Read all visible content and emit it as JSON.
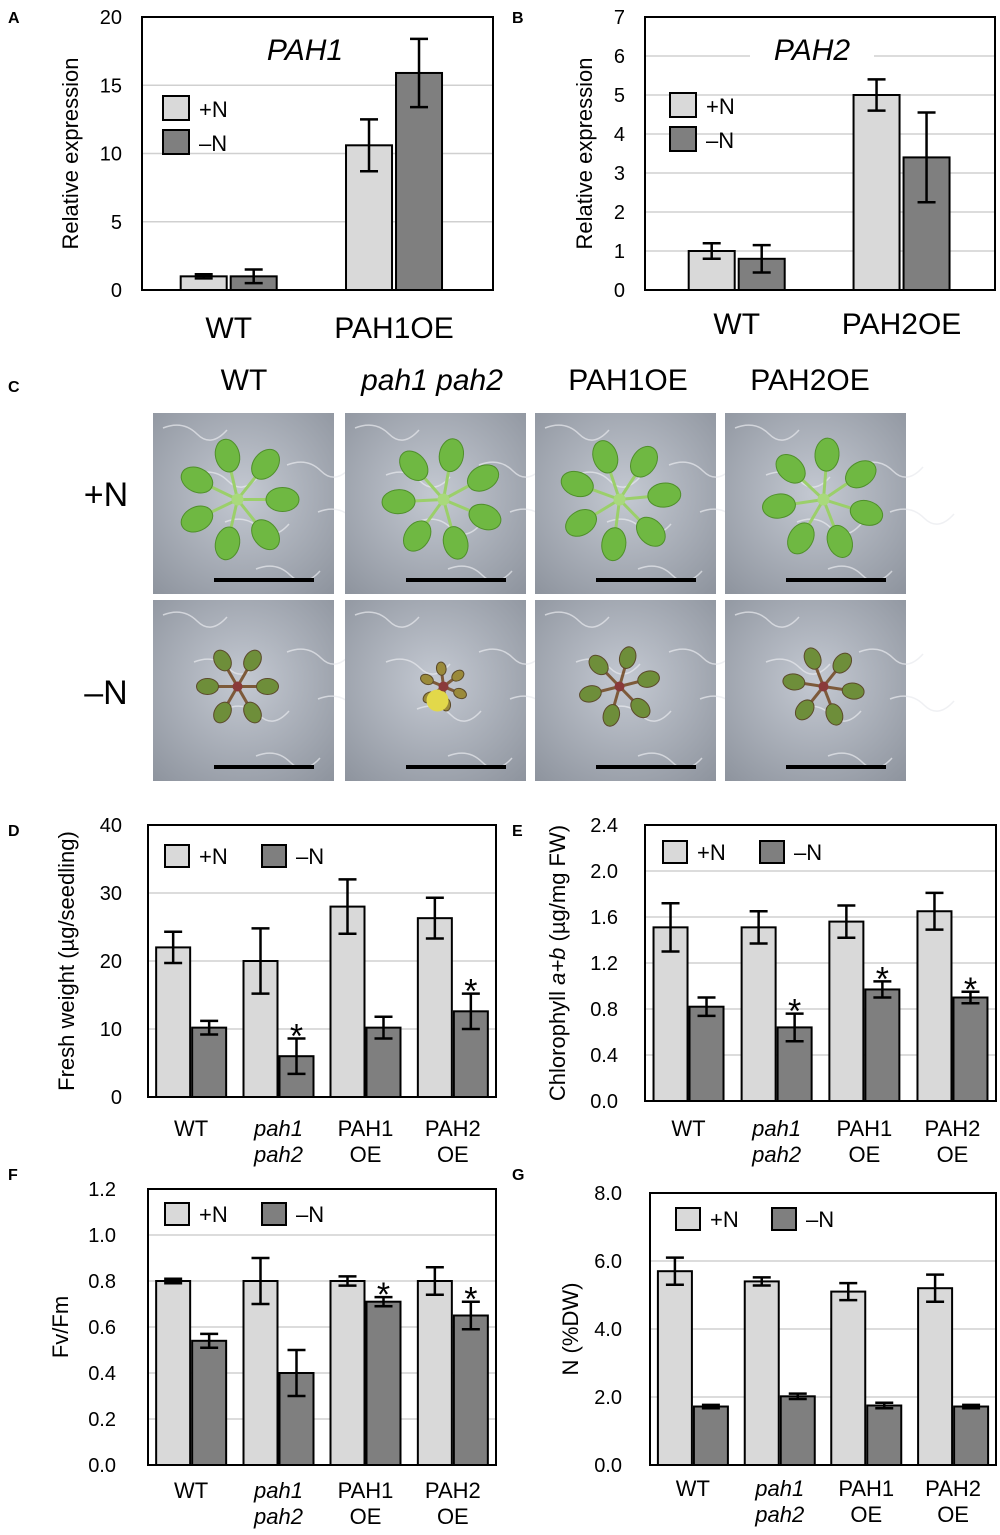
{
  "colors": {
    "plus_n": "#d9d9d9",
    "minus_n": "#7f7f7f",
    "gridline": "#d0d0d0",
    "frame": "#000000",
    "plant_green": "#6fb842",
    "medium_grey": "#9ea4ac",
    "scale_bar": "#000000"
  },
  "legend": {
    "plus_n": "+N",
    "minus_n": "–N"
  },
  "panel_c": {
    "label": "C",
    "genotypes": [
      "WT",
      "pah1 pah2",
      "PAH1OE",
      "PAH2OE"
    ],
    "genotype_italic": [
      false,
      true,
      false,
      false
    ],
    "conditions": [
      "+N",
      "–N"
    ],
    "photo_content": "Arabidopsis seedlings grown on agar with (+N) or without (–N) nitrogen; each photo has a black scale bar"
  },
  "chart_data": [
    {
      "label": "A",
      "type": "bar",
      "title": "PAH1",
      "ylabel": "Relative expression",
      "ylim": [
        0,
        20
      ],
      "yticks": [
        "0",
        "5",
        "10",
        "15",
        "20"
      ],
      "categories": [
        "WT",
        "PAH1OE"
      ],
      "category_lines": [
        [
          "WT"
        ],
        [
          "PAH1OE"
        ]
      ],
      "series": [
        {
          "name": "+N",
          "values": [
            1.0,
            10.6
          ],
          "errors": [
            0.15,
            1.9
          ]
        },
        {
          "name": "–N",
          "values": [
            1.0,
            15.9
          ],
          "errors": [
            0.5,
            2.5
          ]
        }
      ],
      "stars": [
        [
          false,
          false
        ],
        [
          false,
          false
        ]
      ],
      "grid": true,
      "legend": "top-left"
    },
    {
      "label": "B",
      "type": "bar",
      "title": "PAH2",
      "ylabel": "Relative expression",
      "ylim": [
        0,
        7
      ],
      "yticks": [
        "0",
        "1",
        "2",
        "3",
        "4",
        "5",
        "6",
        "7"
      ],
      "categories": [
        "WT",
        "PAH2OE"
      ],
      "category_lines": [
        [
          "WT"
        ],
        [
          "PAH2OE"
        ]
      ],
      "series": [
        {
          "name": "+N",
          "values": [
            1.0,
            5.0
          ],
          "errors": [
            0.2,
            0.4
          ]
        },
        {
          "name": "–N",
          "values": [
            0.8,
            3.4
          ],
          "errors": [
            0.35,
            1.15
          ]
        }
      ],
      "stars": [
        [
          false,
          false
        ],
        [
          false,
          false
        ]
      ],
      "grid": true,
      "legend": "top-left"
    },
    {
      "label": "D",
      "type": "bar",
      "ylabel": "Fresh weight (µg/seedling)",
      "ylim": [
        0,
        40
      ],
      "yticks": [
        "0",
        "10",
        "20",
        "30",
        "40"
      ],
      "categories": [
        "WT",
        "pah1 pah2",
        "PAH1 OE",
        "PAH2 OE"
      ],
      "category_lines": [
        [
          "WT"
        ],
        [
          "pah1",
          "pah2"
        ],
        [
          "PAH1",
          "OE"
        ],
        [
          "PAH2",
          "OE"
        ]
      ],
      "category_italic": [
        false,
        true,
        false,
        false
      ],
      "series": [
        {
          "name": "+N",
          "values": [
            22.0,
            20.0,
            28.0,
            26.3
          ],
          "errors": [
            2.3,
            4.8,
            4.0,
            3.0
          ]
        },
        {
          "name": "–N",
          "values": [
            10.2,
            6.0,
            10.2,
            12.6
          ],
          "errors": [
            1.0,
            2.6,
            1.6,
            2.6
          ]
        }
      ],
      "stars": [
        [
          false,
          false
        ],
        [
          false,
          true
        ],
        [
          false,
          false
        ],
        [
          false,
          true
        ]
      ],
      "grid": true,
      "legend": "top-left"
    },
    {
      "label": "E",
      "type": "bar",
      "ylabel": "Chlorophyll a+b (µg/mg FW)",
      "ylim": [
        0,
        2.4
      ],
      "yticks": [
        "0.0",
        "0.4",
        "0.8",
        "1.2",
        "1.6",
        "2.0",
        "2.4"
      ],
      "categories": [
        "WT",
        "pah1 pah2",
        "PAH1 OE",
        "PAH2 OE"
      ],
      "category_lines": [
        [
          "WT"
        ],
        [
          "pah1",
          "pah2"
        ],
        [
          "PAH1",
          "OE"
        ],
        [
          "PAH2",
          "OE"
        ]
      ],
      "category_italic": [
        false,
        true,
        false,
        false
      ],
      "series": [
        {
          "name": "+N",
          "values": [
            1.51,
            1.51,
            1.56,
            1.65
          ],
          "errors": [
            0.21,
            0.14,
            0.14,
            0.16
          ]
        },
        {
          "name": "–N",
          "values": [
            0.82,
            0.64,
            0.97,
            0.9
          ],
          "errors": [
            0.08,
            0.12,
            0.07,
            0.05
          ]
        }
      ],
      "stars": [
        [
          false,
          false
        ],
        [
          false,
          true
        ],
        [
          false,
          true
        ],
        [
          false,
          true
        ]
      ],
      "grid": true,
      "legend": "top-left"
    },
    {
      "label": "F",
      "type": "bar",
      "ylabel": "Fv/Fm",
      "ylim": [
        0,
        1.2
      ],
      "yticks": [
        "0.0",
        "0.2",
        "0.4",
        "0.6",
        "0.8",
        "1.0",
        "1.2"
      ],
      "categories": [
        "WT",
        "pah1 pah2",
        "PAH1 OE",
        "PAH2 OE"
      ],
      "category_lines": [
        [
          "WT"
        ],
        [
          "pah1",
          "pah2"
        ],
        [
          "PAH1",
          "OE"
        ],
        [
          "PAH2",
          "OE"
        ]
      ],
      "category_italic": [
        false,
        true,
        false,
        false
      ],
      "series": [
        {
          "name": "+N",
          "values": [
            0.8,
            0.8,
            0.8,
            0.8
          ],
          "errors": [
            0.01,
            0.1,
            0.02,
            0.06
          ]
        },
        {
          "name": "–N",
          "values": [
            0.54,
            0.4,
            0.71,
            0.65
          ],
          "errors": [
            0.03,
            0.1,
            0.02,
            0.06
          ]
        }
      ],
      "stars": [
        [
          false,
          false
        ],
        [
          false,
          false
        ],
        [
          false,
          true
        ],
        [
          false,
          true
        ]
      ],
      "grid": true,
      "legend": "top-left"
    },
    {
      "label": "G",
      "type": "bar",
      "ylabel": "N (%DW)",
      "ylim": [
        0,
        8.0
      ],
      "yticks": [
        "0.0",
        "2.0",
        "4.0",
        "6.0",
        "8.0"
      ],
      "categories": [
        "WT",
        "pah1 pah2",
        "PAH1 OE",
        "PAH2 OE"
      ],
      "category_lines": [
        [
          "WT"
        ],
        [
          "pah1",
          "pah2"
        ],
        [
          "PAH1",
          "OE"
        ],
        [
          "PAH2",
          "OE"
        ]
      ],
      "category_italic": [
        false,
        true,
        false,
        false
      ],
      "series": [
        {
          "name": "+N",
          "values": [
            5.7,
            5.4,
            5.1,
            5.2
          ],
          "errors": [
            0.4,
            0.12,
            0.25,
            0.4
          ]
        },
        {
          "name": "–N",
          "values": [
            1.72,
            2.02,
            1.75,
            1.72
          ],
          "errors": [
            0.05,
            0.08,
            0.08,
            0.05
          ]
        }
      ],
      "stars": [
        [
          false,
          false
        ],
        [
          false,
          false
        ],
        [
          false,
          false
        ],
        [
          false,
          false
        ]
      ],
      "grid": true,
      "legend": "top-left"
    }
  ]
}
